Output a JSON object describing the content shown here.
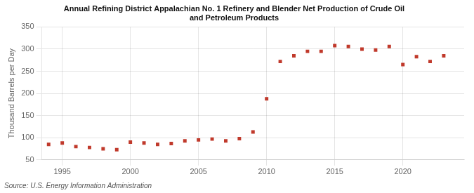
{
  "chart_data": {
    "type": "scatter",
    "title": "Annual Refining District Appalachian No. 1 Refinery and Blender Net Production of Crude Oil\nand Petroleum Products",
    "y_label": "Thousand Barrels per Day",
    "annotation": "Source: U.S. Energy Information Administration",
    "x": [
      1994,
      1995,
      1996,
      1997,
      1998,
      1999,
      2000,
      2001,
      2002,
      2003,
      2004,
      2005,
      2006,
      2007,
      2008,
      2009,
      2010,
      2011,
      2012,
      2013,
      2014,
      2015,
      2016,
      2017,
      2018,
      2019,
      2020,
      2021,
      2022,
      2023
    ],
    "values": [
      85,
      88,
      80,
      78,
      75,
      73,
      90,
      88,
      85,
      87,
      93,
      95,
      97,
      93,
      98,
      113,
      188,
      272,
      285,
      295,
      295,
      308,
      306,
      300,
      298,
      306,
      265,
      283,
      272,
      285
    ],
    "color": "#c0392b",
    "marker": "square",
    "xlim": [
      1993.5,
      2024.5
    ],
    "xticks": [
      1995,
      2000,
      2005,
      2010,
      2015,
      2020
    ],
    "ylim": [
      50,
      350
    ],
    "yticks": [
      50,
      100,
      150,
      200,
      250,
      300,
      350
    ],
    "grid": true
  }
}
